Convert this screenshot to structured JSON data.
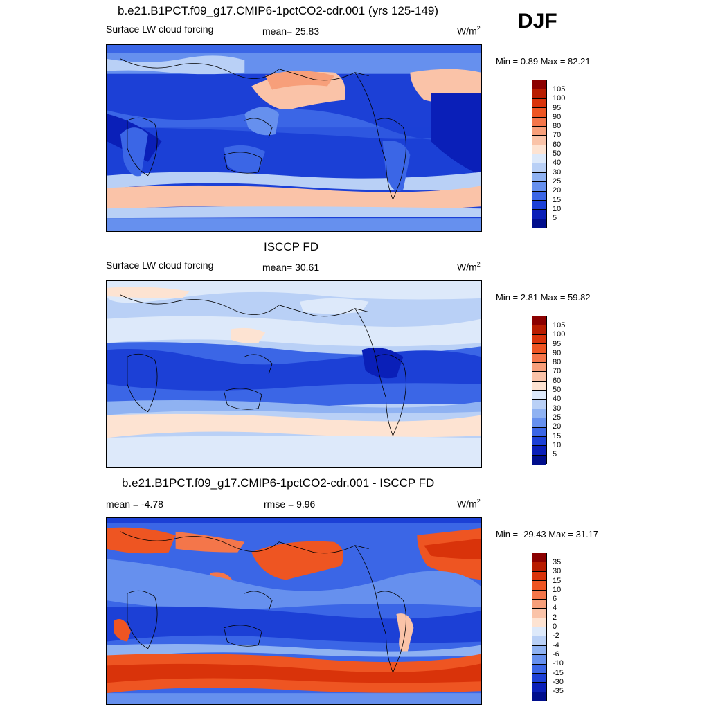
{
  "season": "DJF",
  "panels": [
    {
      "title": "b.e21.B1PCT.f09_g17.CMIP6-1pctCO2-cdr.001 (yrs 125-149)",
      "left_label": "Surface LW cloud forcing",
      "center_label": "mean=  25.83",
      "units": "W/m",
      "units_sup": "2",
      "minmax": "Min =   0.89 Max =  82.21"
    },
    {
      "title": "ISCCP FD",
      "left_label": "Surface LW cloud forcing",
      "center_label": "mean=  30.61",
      "units": "W/m",
      "units_sup": "2",
      "minmax": "Min =   2.81 Max =  59.82"
    },
    {
      "title": "b.e21.B1PCT.f09_g17.CMIP6-1pctCO2-cdr.001 - ISCCP FD",
      "left_label": "mean =  -4.78",
      "center_label": "rmse =   9.96",
      "units": "W/m",
      "units_sup": "2",
      "minmax": "Min = -29.43 Max =  31.17"
    }
  ],
  "colorbar_abs": {
    "labels": [
      "105",
      "100",
      "95",
      "90",
      "80",
      "70",
      "60",
      "50",
      "40",
      "30",
      "25",
      "20",
      "15",
      "10",
      "5"
    ],
    "colors": [
      "#8b0000",
      "#b81c00",
      "#d9330a",
      "#ee5522",
      "#f4764a",
      "#f79f7a",
      "#fac3a8",
      "#fde3d2",
      "#dde9fa",
      "#b9d0f6",
      "#8fb2f2",
      "#6690ee",
      "#3b66e6",
      "#1c40d6",
      "#0a1fb8",
      "#000e8c"
    ]
  },
  "colorbar_diff": {
    "labels": [
      "35",
      "30",
      "15",
      "10",
      "6",
      "4",
      "2",
      "0",
      "-2",
      "-4",
      "-6",
      "-10",
      "-15",
      "-30",
      "-35"
    ],
    "colors": [
      "#8b0000",
      "#b81c00",
      "#d9330a",
      "#ee5522",
      "#f4764a",
      "#f79f7a",
      "#fac3a8",
      "#fde3d2",
      "#dde9fa",
      "#b9d0f6",
      "#8fb2f2",
      "#6690ee",
      "#3b66e6",
      "#1c40d6",
      "#0a1fb8",
      "#000e8c"
    ]
  }
}
